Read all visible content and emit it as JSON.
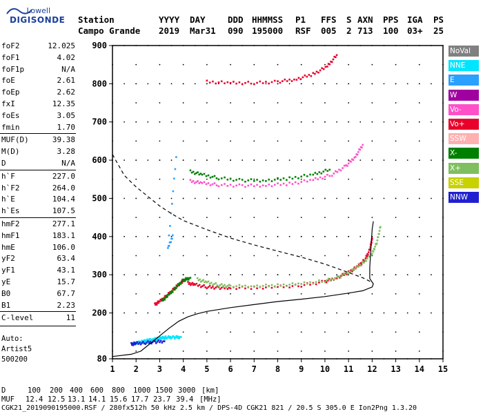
{
  "logo": {
    "top": "Lowell",
    "bottom": "DIGISONDE"
  },
  "header": {
    "labels": [
      "Station",
      "YYYY",
      "DAY",
      "DDD",
      "HHMMSS",
      "P1",
      "FFS",
      "S",
      "AXN",
      "PPS",
      "IGA",
      "PS"
    ],
    "values": [
      "Campo Grande",
      "2019",
      "Mar31",
      "090",
      "195000",
      "RSF",
      "005",
      "2",
      "713",
      "100",
      "03+",
      "25"
    ]
  },
  "params": [
    {
      "name": "foF2",
      "value": "12.025"
    },
    {
      "name": "foF1",
      "value": "4.02"
    },
    {
      "name": "foF1p",
      "value": "N/A"
    },
    {
      "name": "foE",
      "value": "2.61"
    },
    {
      "name": "foEp",
      "value": "2.62"
    },
    {
      "name": "fxI",
      "value": "12.35"
    },
    {
      "name": "foEs",
      "value": "3.05"
    },
    {
      "name": "fmin",
      "value": "1.70"
    },
    {
      "name": "MUF(D)",
      "value": "39.38"
    },
    {
      "name": "M(D)",
      "value": "3.28"
    },
    {
      "name": "D",
      "value": "N/A"
    },
    {
      "name": "h`F",
      "value": "227.0"
    },
    {
      "name": "h`F2",
      "value": "264.0"
    },
    {
      "name": "h`E",
      "value": "104.4"
    },
    {
      "name": "h`Es",
      "value": "107.5"
    },
    {
      "name": "hmF2",
      "value": "277.1"
    },
    {
      "name": "hmF1",
      "value": "183.1"
    },
    {
      "name": "hmE",
      "value": "106.0"
    },
    {
      "name": "yF2",
      "value": "63.4"
    },
    {
      "name": "yF1",
      "value": "43.1"
    },
    {
      "name": "yE",
      "value": "15.7"
    },
    {
      "name": "B0",
      "value": "67.7"
    },
    {
      "name": "B1",
      "value": "2.23"
    },
    {
      "name": "C-level",
      "value": "11"
    }
  ],
  "autoscaling": {
    "line1": "Auto:",
    "line2": "Artist5",
    "line3": "500200"
  },
  "legend": [
    {
      "label": "NoVal",
      "color": "#808080"
    },
    {
      "label": "NNE",
      "color": "#00e5ff"
    },
    {
      "label": "E",
      "color": "#2aa0ff"
    },
    {
      "label": "W",
      "color": "#a000a0"
    },
    {
      "label": "Vo-",
      "color": "#ff50c8"
    },
    {
      "label": "Vo+",
      "color": "#e8002a"
    },
    {
      "label": "SSW",
      "color": "#ffb0b0"
    },
    {
      "label": "X-",
      "color": "#008000"
    },
    {
      "label": "X+",
      "color": "#7fbf5f"
    },
    {
      "label": "SSE",
      "color": "#c8d200"
    },
    {
      "label": "NNW",
      "color": "#2020d0"
    }
  ],
  "footer": {
    "distance_label": "D",
    "distances": [
      "100",
      "200",
      "400",
      "600",
      "800",
      "1000",
      "1500",
      "3000",
      "[km]"
    ],
    "muf_label": "MUF",
    "mufs": [
      "12.4",
      "12.5",
      "13.1",
      "14.1",
      "15.6",
      "17.7",
      "23.7",
      "39.4",
      "[MHz]"
    ],
    "info": "CGK21_2019090195000.RSF / 280fx512h 50 kHz 2.5 km / DPS-4D CGK21 821 / 20.5 S 305.0 E Ion2Png 1.3.20"
  },
  "chart_data": {
    "type": "scatter",
    "xlim": [
      1,
      15
    ],
    "ylim": [
      80,
      900
    ],
    "x_ticks": [
      1,
      2,
      3,
      4,
      5,
      6,
      7,
      8,
      9,
      10,
      11,
      12,
      13,
      14,
      15
    ],
    "y_ticks": [
      80,
      200,
      300,
      400,
      500,
      600,
      700,
      800,
      900
    ],
    "grid": true,
    "legend_position": "right",
    "traces": {
      "f2_o": {
        "color": "#e8002a",
        "points": [
          [
            4.2,
            278
          ],
          [
            4.5,
            274
          ],
          [
            5,
            268
          ],
          [
            5.5,
            266
          ],
          [
            6,
            266
          ],
          [
            7,
            266
          ],
          [
            8,
            268
          ],
          [
            9,
            272
          ],
          [
            10,
            282
          ],
          [
            10.5,
            292
          ],
          [
            11,
            306
          ],
          [
            11.4,
            322
          ],
          [
            11.7,
            340
          ],
          [
            11.9,
            365
          ],
          [
            12.0,
            395
          ]
        ]
      },
      "f2_x": {
        "color": "#7fbf5f",
        "points": [
          [
            4.6,
            288
          ],
          [
            5,
            280
          ],
          [
            5.5,
            273
          ],
          [
            6,
            270
          ],
          [
            7,
            270
          ],
          [
            8,
            272
          ],
          [
            9,
            276
          ],
          [
            10,
            284
          ],
          [
            10.6,
            294
          ],
          [
            11.1,
            310
          ],
          [
            11.6,
            330
          ],
          [
            12.0,
            355
          ],
          [
            12.2,
            385
          ],
          [
            12.35,
            425
          ]
        ]
      },
      "f1_low": {
        "color": "#e8002a",
        "points": [
          [
            2.8,
            222
          ],
          [
            3.0,
            230
          ],
          [
            3.3,
            245
          ],
          [
            3.6,
            262
          ],
          [
            3.9,
            280
          ],
          [
            4.1,
            288
          ]
        ]
      },
      "f1_low_x": {
        "color": "#008000",
        "points": [
          [
            3.1,
            232
          ],
          [
            3.4,
            248
          ],
          [
            3.7,
            268
          ],
          [
            4.0,
            286
          ],
          [
            4.3,
            292
          ]
        ]
      },
      "e_es": {
        "color": "#00e5ff",
        "points": [
          [
            1.9,
            120
          ],
          [
            2.1,
            122
          ],
          [
            2.3,
            125
          ],
          [
            2.5,
            128
          ],
          [
            2.7,
            130
          ],
          [
            2.9,
            132
          ],
          [
            3.1,
            134
          ],
          [
            3.3,
            136
          ],
          [
            3.6,
            136
          ],
          [
            3.9,
            137
          ]
        ]
      },
      "e_es_v": {
        "color": "#2020d0",
        "points": [
          [
            1.8,
            118
          ],
          [
            2.0,
            120
          ],
          [
            2.4,
            122
          ],
          [
            2.8,
            124
          ],
          [
            3.2,
            126
          ]
        ]
      },
      "multi2": {
        "color": "#ff50c8",
        "points": [
          [
            4.3,
            545
          ],
          [
            4.8,
            540
          ],
          [
            5.5,
            535
          ],
          [
            6.5,
            533
          ],
          [
            7.5,
            534
          ],
          [
            8.5,
            538
          ],
          [
            9.5,
            548
          ],
          [
            10.3,
            562
          ],
          [
            10.9,
            585
          ],
          [
            11.3,
            610
          ],
          [
            11.6,
            640
          ]
        ]
      },
      "multi2_x": {
        "color": "#008000",
        "points": [
          [
            4.3,
            570
          ],
          [
            4.8,
            562
          ],
          [
            5.5,
            553
          ],
          [
            6.5,
            547
          ],
          [
            7.5,
            547
          ],
          [
            8.5,
            552
          ],
          [
            9.5,
            562
          ],
          [
            10.2,
            575
          ]
        ]
      },
      "multi3": {
        "color": "#e8002a",
        "points": [
          [
            5.0,
            805
          ],
          [
            6,
            802
          ],
          [
            7,
            802
          ],
          [
            8,
            805
          ],
          [
            8.8,
            812
          ],
          [
            9.5,
            825
          ],
          [
            10.1,
            845
          ],
          [
            10.5,
            875
          ]
        ]
      },
      "scatter_misc": {
        "color": "#2aa0ff",
        "points": [
          [
            3.55,
            400
          ],
          [
            3.35,
            370
          ],
          [
            3.7,
            608
          ]
        ]
      }
    },
    "profile": {
      "color": "#000000",
      "points": [
        [
          1,
          86
        ],
        [
          1.8,
          92
        ],
        [
          2.2,
          100
        ],
        [
          2.6,
          120
        ],
        [
          3,
          140
        ],
        [
          3.4,
          160
        ],
        [
          3.8,
          178
        ],
        [
          4.2,
          190
        ],
        [
          4.6,
          198
        ],
        [
          5,
          204
        ],
        [
          6,
          214
        ],
        [
          7,
          222
        ],
        [
          8,
          230
        ],
        [
          9,
          236
        ],
        [
          10,
          243
        ],
        [
          11,
          252
        ],
        [
          11.6,
          258
        ],
        [
          12.0,
          268
        ],
        [
          12.05,
          276
        ],
        [
          11.9,
          290
        ],
        [
          11.9,
          320
        ],
        [
          11.95,
          370
        ],
        [
          12.0,
          420
        ],
        [
          12.05,
          440
        ]
      ]
    },
    "model": {
      "color": "#000000",
      "style": "dashed",
      "points": [
        [
          1,
          615
        ],
        [
          1.5,
          560
        ],
        [
          2,
          530
        ],
        [
          2.5,
          505
        ],
        [
          3,
          480
        ],
        [
          3.5,
          460
        ],
        [
          4,
          442
        ],
        [
          5,
          418
        ],
        [
          6,
          396
        ],
        [
          7,
          378
        ],
        [
          8,
          362
        ],
        [
          9,
          346
        ],
        [
          10,
          328
        ],
        [
          11,
          306
        ],
        [
          11.6,
          292
        ],
        [
          12.0,
          280
        ]
      ]
    }
  }
}
